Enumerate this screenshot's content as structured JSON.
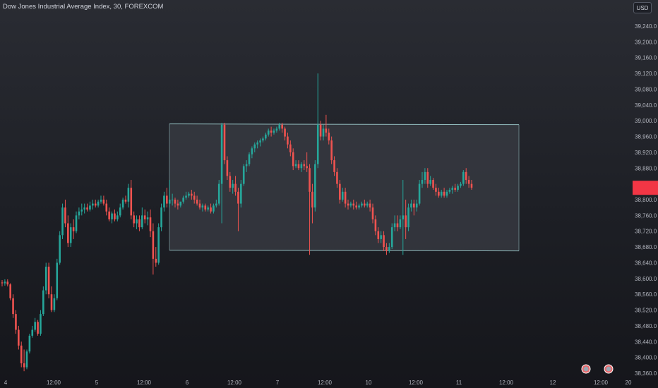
{
  "header": {
    "title": "Dow Jones Industrial Average Index, 30, FOREXCOM",
    "currency": "USD"
  },
  "colors": {
    "up": "#26a69a",
    "down": "#ef5350",
    "box_border": "#8fb8ba",
    "box_fill": "#3a3c44",
    "price_tag": "#f23645",
    "axis_text": "#b2b5be"
  },
  "chart_data": {
    "type": "candlestick",
    "y_ticks": [
      "39,240.0",
      "39,200.0",
      "39,160.0",
      "39,120.0",
      "39,080.0",
      "39,040.0",
      "39,000.0",
      "38,960.0",
      "38,920.0",
      "38,880.0",
      "38,840.0",
      "38,800.0",
      "38,760.0",
      "38,720.0",
      "38,680.0",
      "38,640.0",
      "38,600.0",
      "38,560.0",
      "38,520.0",
      "38,480.0",
      "38,440.0",
      "38,400.0",
      "38,360.0"
    ],
    "x_ticks": [
      "4",
      "12:00",
      "5",
      "12:00",
      "6",
      "12:00",
      "7",
      "12:00",
      "10",
      "12:00",
      "11",
      "12:00",
      "12",
      "12:00",
      "20"
    ],
    "range_box": {
      "top": 38992,
      "bottom": 38672
    },
    "last_price": 38830,
    "candles": [
      {
        "o": 38590,
        "h": 38596,
        "c": 38588,
        "l": 38580
      },
      {
        "o": 38588,
        "h": 38598,
        "c": 38592,
        "l": 38582
      },
      {
        "o": 38592,
        "h": 38598,
        "c": 38585,
        "l": 38580
      },
      {
        "o": 38585,
        "h": 38588,
        "c": 38550,
        "l": 38545
      },
      {
        "o": 38550,
        "h": 38560,
        "c": 38510,
        "l": 38500
      },
      {
        "o": 38510,
        "h": 38520,
        "c": 38470,
        "l": 38460
      },
      {
        "o": 38470,
        "h": 38480,
        "c": 38430,
        "l": 38420
      },
      {
        "o": 38430,
        "h": 38440,
        "c": 38385,
        "l": 38375
      },
      {
        "o": 38385,
        "h": 38420,
        "c": 38375,
        "l": 38365
      },
      {
        "o": 38375,
        "h": 38420,
        "c": 38415,
        "l": 38370
      },
      {
        "o": 38415,
        "h": 38460,
        "c": 38455,
        "l": 38410
      },
      {
        "o": 38455,
        "h": 38480,
        "c": 38470,
        "l": 38450
      },
      {
        "o": 38470,
        "h": 38500,
        "c": 38490,
        "l": 38465
      },
      {
        "o": 38490,
        "h": 38495,
        "c": 38460,
        "l": 38455
      },
      {
        "o": 38460,
        "h": 38520,
        "c": 38510,
        "l": 38455
      },
      {
        "o": 38510,
        "h": 38580,
        "c": 38570,
        "l": 38505
      },
      {
        "o": 38570,
        "h": 38640,
        "c": 38630,
        "l": 38560
      },
      {
        "o": 38630,
        "h": 38640,
        "c": 38560,
        "l": 38550
      },
      {
        "o": 38560,
        "h": 38580,
        "c": 38520,
        "l": 38515
      },
      {
        "o": 38520,
        "h": 38560,
        "c": 38550,
        "l": 38515
      },
      {
        "o": 38550,
        "h": 38650,
        "c": 38640,
        "l": 38545
      },
      {
        "o": 38640,
        "h": 38720,
        "c": 38710,
        "l": 38635
      },
      {
        "o": 38710,
        "h": 38790,
        "c": 38780,
        "l": 38700
      },
      {
        "o": 38780,
        "h": 38800,
        "c": 38740,
        "l": 38730
      },
      {
        "o": 38740,
        "h": 38760,
        "c": 38690,
        "l": 38680
      },
      {
        "o": 38690,
        "h": 38740,
        "c": 38730,
        "l": 38680
      },
      {
        "o": 38730,
        "h": 38750,
        "c": 38720,
        "l": 38700
      },
      {
        "o": 38720,
        "h": 38770,
        "c": 38760,
        "l": 38715
      },
      {
        "o": 38760,
        "h": 38780,
        "c": 38770,
        "l": 38750
      },
      {
        "o": 38770,
        "h": 38790,
        "c": 38775,
        "l": 38760
      },
      {
        "o": 38775,
        "h": 38790,
        "c": 38780,
        "l": 38765
      },
      {
        "o": 38780,
        "h": 38790,
        "c": 38775,
        "l": 38770
      },
      {
        "o": 38775,
        "h": 38795,
        "c": 38785,
        "l": 38770
      },
      {
        "o": 38785,
        "h": 38800,
        "c": 38790,
        "l": 38775
      },
      {
        "o": 38790,
        "h": 38800,
        "c": 38785,
        "l": 38780
      },
      {
        "o": 38785,
        "h": 38800,
        "c": 38795,
        "l": 38780
      },
      {
        "o": 38795,
        "h": 38810,
        "c": 38800,
        "l": 38790
      },
      {
        "o": 38800,
        "h": 38810,
        "c": 38790,
        "l": 38785
      },
      {
        "o": 38790,
        "h": 38800,
        "c": 38770,
        "l": 38760
      },
      {
        "o": 38770,
        "h": 38780,
        "c": 38750,
        "l": 38745
      },
      {
        "o": 38750,
        "h": 38770,
        "c": 38765,
        "l": 38740
      },
      {
        "o": 38765,
        "h": 38775,
        "c": 38750,
        "l": 38745
      },
      {
        "o": 38750,
        "h": 38770,
        "c": 38760,
        "l": 38745
      },
      {
        "o": 38760,
        "h": 38790,
        "c": 38780,
        "l": 38755
      },
      {
        "o": 38780,
        "h": 38805,
        "c": 38800,
        "l": 38775
      },
      {
        "o": 38800,
        "h": 38810,
        "c": 38795,
        "l": 38790
      },
      {
        "o": 38795,
        "h": 38840,
        "c": 38830,
        "l": 38780
      },
      {
        "o": 38830,
        "h": 38850,
        "c": 38760,
        "l": 38750
      },
      {
        "o": 38760,
        "h": 38770,
        "c": 38740,
        "l": 38730
      },
      {
        "o": 38740,
        "h": 38760,
        "c": 38750,
        "l": 38725
      },
      {
        "o": 38750,
        "h": 38760,
        "c": 38730,
        "l": 38720
      },
      {
        "o": 38730,
        "h": 38780,
        "c": 38760,
        "l": 38725
      },
      {
        "o": 38760,
        "h": 38775,
        "c": 38750,
        "l": 38740
      },
      {
        "o": 38750,
        "h": 38770,
        "c": 38755,
        "l": 38735
      },
      {
        "o": 38755,
        "h": 38775,
        "c": 38720,
        "l": 38705
      },
      {
        "o": 38720,
        "h": 38740,
        "c": 38650,
        "l": 38610
      },
      {
        "o": 38650,
        "h": 38680,
        "c": 38640,
        "l": 38630
      },
      {
        "o": 38640,
        "h": 38740,
        "c": 38730,
        "l": 38635
      },
      {
        "o": 38730,
        "h": 38790,
        "c": 38780,
        "l": 38720
      },
      {
        "o": 38780,
        "h": 38820,
        "c": 38810,
        "l": 38770
      },
      {
        "o": 38810,
        "h": 38830,
        "c": 38790,
        "l": 38780
      },
      {
        "o": 38790,
        "h": 38850,
        "c": 38800,
        "l": 38780
      },
      {
        "o": 38800,
        "h": 38815,
        "c": 38800,
        "l": 38785
      },
      {
        "o": 38800,
        "h": 38805,
        "c": 38790,
        "l": 38780
      },
      {
        "o": 38790,
        "h": 38800,
        "c": 38785,
        "l": 38775
      },
      {
        "o": 38785,
        "h": 38795,
        "c": 38795,
        "l": 38780
      },
      {
        "o": 38795,
        "h": 38810,
        "c": 38805,
        "l": 38790
      },
      {
        "o": 38805,
        "h": 38820,
        "c": 38810,
        "l": 38800
      },
      {
        "o": 38810,
        "h": 38820,
        "c": 38815,
        "l": 38805
      },
      {
        "o": 38815,
        "h": 38825,
        "c": 38810,
        "l": 38800
      },
      {
        "o": 38810,
        "h": 38820,
        "c": 38800,
        "l": 38790
      },
      {
        "o": 38800,
        "h": 38810,
        "c": 38790,
        "l": 38785
      },
      {
        "o": 38790,
        "h": 38800,
        "c": 38780,
        "l": 38775
      },
      {
        "o": 38780,
        "h": 38790,
        "c": 38785,
        "l": 38770
      },
      {
        "o": 38785,
        "h": 38790,
        "c": 38775,
        "l": 38770
      },
      {
        "o": 38775,
        "h": 38785,
        "c": 38780,
        "l": 38770
      },
      {
        "o": 38780,
        "h": 38790,
        "c": 38770,
        "l": 38765
      },
      {
        "o": 38770,
        "h": 38790,
        "c": 38785,
        "l": 38765
      },
      {
        "o": 38785,
        "h": 38800,
        "c": 38790,
        "l": 38780
      },
      {
        "o": 38790,
        "h": 38850,
        "c": 38840,
        "l": 38785
      },
      {
        "o": 38840,
        "h": 38995,
        "c": 38990,
        "l": 38740
      },
      {
        "o": 38990,
        "h": 38995,
        "c": 38900,
        "l": 38890
      },
      {
        "o": 38900,
        "h": 38910,
        "c": 38860,
        "l": 38850
      },
      {
        "o": 38860,
        "h": 38870,
        "c": 38830,
        "l": 38820
      },
      {
        "o": 38830,
        "h": 38850,
        "c": 38840,
        "l": 38815
      },
      {
        "o": 38840,
        "h": 38860,
        "c": 38820,
        "l": 38810
      },
      {
        "o": 38820,
        "h": 38830,
        "c": 38790,
        "l": 38720
      },
      {
        "o": 38790,
        "h": 38850,
        "c": 38840,
        "l": 38780
      },
      {
        "o": 38840,
        "h": 38890,
        "c": 38885,
        "l": 38835
      },
      {
        "o": 38885,
        "h": 38900,
        "c": 38890,
        "l": 38870
      },
      {
        "o": 38890,
        "h": 38920,
        "c": 38915,
        "l": 38885
      },
      {
        "o": 38915,
        "h": 38935,
        "c": 38930,
        "l": 38905
      },
      {
        "o": 38930,
        "h": 38945,
        "c": 38940,
        "l": 38920
      },
      {
        "o": 38940,
        "h": 38950,
        "c": 38945,
        "l": 38930
      },
      {
        "o": 38945,
        "h": 38955,
        "c": 38950,
        "l": 38935
      },
      {
        "o": 38950,
        "h": 38960,
        "c": 38955,
        "l": 38945
      },
      {
        "o": 38955,
        "h": 38970,
        "c": 38965,
        "l": 38950
      },
      {
        "o": 38965,
        "h": 38980,
        "c": 38975,
        "l": 38960
      },
      {
        "o": 38975,
        "h": 38985,
        "c": 38970,
        "l": 38960
      },
      {
        "o": 38970,
        "h": 38980,
        "c": 38975,
        "l": 38965
      },
      {
        "o": 38975,
        "h": 38985,
        "c": 38980,
        "l": 38970
      },
      {
        "o": 38980,
        "h": 38995,
        "c": 38990,
        "l": 38975
      },
      {
        "o": 38990,
        "h": 38995,
        "c": 38980,
        "l": 38970
      },
      {
        "o": 38980,
        "h": 38985,
        "c": 38960,
        "l": 38950
      },
      {
        "o": 38960,
        "h": 38970,
        "c": 38940,
        "l": 38930
      },
      {
        "o": 38940,
        "h": 38950,
        "c": 38920,
        "l": 38910
      },
      {
        "o": 38920,
        "h": 38930,
        "c": 38885,
        "l": 38875
      },
      {
        "o": 38885,
        "h": 38900,
        "c": 38890,
        "l": 38880
      },
      {
        "o": 38890,
        "h": 38900,
        "c": 38880,
        "l": 38875
      },
      {
        "o": 38880,
        "h": 38895,
        "c": 38890,
        "l": 38870
      },
      {
        "o": 38890,
        "h": 38900,
        "c": 38885,
        "l": 38875
      },
      {
        "o": 38885,
        "h": 38920,
        "c": 38880,
        "l": 38870
      },
      {
        "o": 38880,
        "h": 38890,
        "c": 38820,
        "l": 38660
      },
      {
        "o": 38820,
        "h": 38840,
        "c": 38780,
        "l": 38740
      },
      {
        "o": 38780,
        "h": 38900,
        "c": 38890,
        "l": 38770
      },
      {
        "o": 38890,
        "h": 39120,
        "c": 38990,
        "l": 38880
      },
      {
        "o": 38990,
        "h": 39000,
        "c": 38960,
        "l": 38950
      },
      {
        "o": 38960,
        "h": 38990,
        "c": 38980,
        "l": 38950
      },
      {
        "o": 38980,
        "h": 39015,
        "c": 38970,
        "l": 38960
      },
      {
        "o": 38970,
        "h": 38980,
        "c": 38950,
        "l": 38940
      },
      {
        "o": 38950,
        "h": 38960,
        "c": 38900,
        "l": 38890
      },
      {
        "o": 38900,
        "h": 38910,
        "c": 38870,
        "l": 38860
      },
      {
        "o": 38870,
        "h": 38880,
        "c": 38840,
        "l": 38830
      },
      {
        "o": 38840,
        "h": 38850,
        "c": 38800,
        "l": 38790
      },
      {
        "o": 38800,
        "h": 38830,
        "c": 38820,
        "l": 38795
      },
      {
        "o": 38820,
        "h": 38830,
        "c": 38790,
        "l": 38780
      },
      {
        "o": 38790,
        "h": 38800,
        "c": 38785,
        "l": 38775
      },
      {
        "o": 38785,
        "h": 38795,
        "c": 38790,
        "l": 38780
      },
      {
        "o": 38790,
        "h": 38800,
        "c": 38785,
        "l": 38775
      },
      {
        "o": 38785,
        "h": 38795,
        "c": 38780,
        "l": 38775
      },
      {
        "o": 38780,
        "h": 38790,
        "c": 38785,
        "l": 38775
      },
      {
        "o": 38785,
        "h": 38795,
        "c": 38790,
        "l": 38780
      },
      {
        "o": 38790,
        "h": 38800,
        "c": 38785,
        "l": 38780
      },
      {
        "o": 38785,
        "h": 38795,
        "c": 38790,
        "l": 38780
      },
      {
        "o": 38790,
        "h": 38800,
        "c": 38780,
        "l": 38770
      },
      {
        "o": 38780,
        "h": 38790,
        "c": 38750,
        "l": 38740
      },
      {
        "o": 38750,
        "h": 38760,
        "c": 38720,
        "l": 38710
      },
      {
        "o": 38720,
        "h": 38730,
        "c": 38700,
        "l": 38690
      },
      {
        "o": 38700,
        "h": 38720,
        "c": 38710,
        "l": 38690
      },
      {
        "o": 38710,
        "h": 38720,
        "c": 38680,
        "l": 38670
      },
      {
        "o": 38680,
        "h": 38690,
        "c": 38670,
        "l": 38660
      },
      {
        "o": 38670,
        "h": 38690,
        "c": 38680,
        "l": 38665
      },
      {
        "o": 38680,
        "h": 38740,
        "c": 38730,
        "l": 38675
      },
      {
        "o": 38730,
        "h": 38760,
        "c": 38740,
        "l": 38720
      },
      {
        "o": 38740,
        "h": 38760,
        "c": 38730,
        "l": 38720
      },
      {
        "o": 38730,
        "h": 38760,
        "c": 38750,
        "l": 38725
      },
      {
        "o": 38750,
        "h": 38850,
        "c": 38760,
        "l": 38660
      },
      {
        "o": 38760,
        "h": 38800,
        "c": 38730,
        "l": 38700
      },
      {
        "o": 38730,
        "h": 38790,
        "c": 38780,
        "l": 38720
      },
      {
        "o": 38780,
        "h": 38800,
        "c": 38790,
        "l": 38770
      },
      {
        "o": 38790,
        "h": 38800,
        "c": 38780,
        "l": 38760
      },
      {
        "o": 38780,
        "h": 38800,
        "c": 38790,
        "l": 38770
      },
      {
        "o": 38790,
        "h": 38850,
        "c": 38840,
        "l": 38785
      },
      {
        "o": 38840,
        "h": 38870,
        "c": 38850,
        "l": 38830
      },
      {
        "o": 38850,
        "h": 38880,
        "c": 38870,
        "l": 38840
      },
      {
        "o": 38870,
        "h": 38880,
        "c": 38840,
        "l": 38830
      },
      {
        "o": 38840,
        "h": 38860,
        "c": 38850,
        "l": 38835
      },
      {
        "o": 38850,
        "h": 38855,
        "c": 38830,
        "l": 38825
      },
      {
        "o": 38830,
        "h": 38840,
        "c": 38820,
        "l": 38810
      },
      {
        "o": 38820,
        "h": 38830,
        "c": 38810,
        "l": 38805
      },
      {
        "o": 38810,
        "h": 38825,
        "c": 38820,
        "l": 38805
      },
      {
        "o": 38820,
        "h": 38830,
        "c": 38810,
        "l": 38805
      },
      {
        "o": 38810,
        "h": 38825,
        "c": 38820,
        "l": 38805
      },
      {
        "o": 38820,
        "h": 38830,
        "c": 38825,
        "l": 38815
      },
      {
        "o": 38825,
        "h": 38835,
        "c": 38830,
        "l": 38815
      },
      {
        "o": 38830,
        "h": 38840,
        "c": 38825,
        "l": 38820
      },
      {
        "o": 38825,
        "h": 38840,
        "c": 38835,
        "l": 38820
      },
      {
        "o": 38835,
        "h": 38845,
        "c": 38840,
        "l": 38830
      },
      {
        "o": 38840,
        "h": 38875,
        "c": 38870,
        "l": 38835
      },
      {
        "o": 38870,
        "h": 38880,
        "c": 38850,
        "l": 38840
      },
      {
        "o": 38850,
        "h": 38860,
        "c": 38840,
        "l": 38830
      },
      {
        "o": 38840,
        "h": 38850,
        "c": 38830,
        "l": 38825
      }
    ]
  }
}
